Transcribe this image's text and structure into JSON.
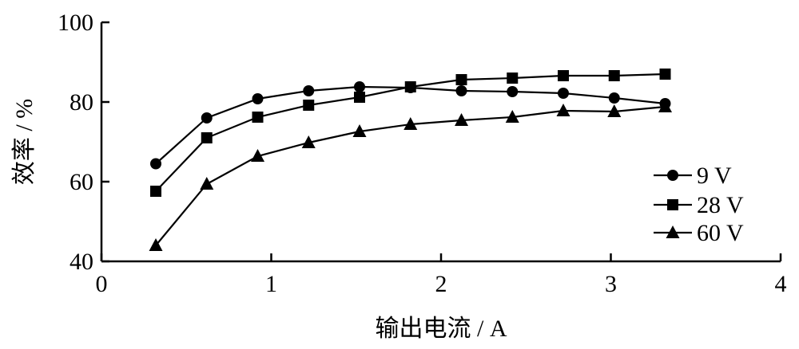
{
  "chart_data": {
    "type": "line",
    "title": "",
    "xlabel": "输出电流 / A",
    "ylabel": "效率 / %",
    "xlim": [
      0,
      4
    ],
    "ylim": [
      40,
      100
    ],
    "xticks": [
      "0",
      "1",
      "2",
      "3",
      "4"
    ],
    "yticks": [
      "40",
      "60",
      "80",
      "100"
    ],
    "grid": false,
    "legend_position": "right",
    "series": [
      {
        "name": "9 V",
        "marker": "circle",
        "x": [
          0.32,
          0.62,
          0.92,
          1.22,
          1.52,
          1.82,
          2.12,
          2.42,
          2.72,
          3.02,
          3.32
        ],
        "y": [
          64.5,
          76.0,
          80.8,
          82.8,
          83.8,
          83.6,
          82.8,
          82.6,
          82.2,
          81.0,
          79.6
        ]
      },
      {
        "name": "28 V",
        "marker": "square",
        "x": [
          0.32,
          0.62,
          0.92,
          1.22,
          1.52,
          1.82,
          2.12,
          2.42,
          2.72,
          3.02,
          3.32
        ],
        "y": [
          57.6,
          71.0,
          76.2,
          79.2,
          81.2,
          83.8,
          85.6,
          86.0,
          86.6,
          86.6,
          87.0
        ]
      },
      {
        "name": "60 V",
        "marker": "triangle",
        "x": [
          0.32,
          0.62,
          0.92,
          1.22,
          1.52,
          1.82,
          2.12,
          2.42,
          2.72,
          3.02,
          3.32
        ],
        "y": [
          44.0,
          59.4,
          66.4,
          69.8,
          72.6,
          74.4,
          75.4,
          76.2,
          77.8,
          77.6,
          78.8
        ]
      }
    ]
  }
}
